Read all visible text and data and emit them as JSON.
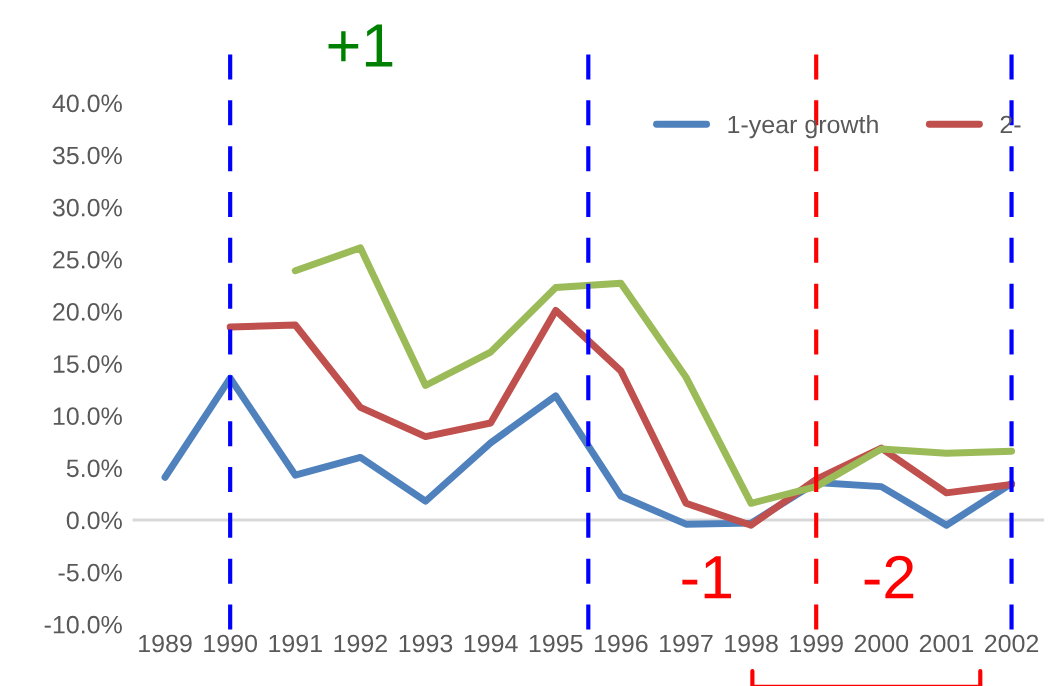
{
  "chart_data": {
    "type": "line",
    "x": [
      1989,
      1990,
      1991,
      1992,
      1993,
      1994,
      1995,
      1996,
      1997,
      1998,
      1999,
      2000,
      2001,
      2002
    ],
    "xlim": [
      1988.5,
      2002.5
    ],
    "xticks": [
      1989,
      1990,
      1991,
      1992,
      1993,
      1994,
      1995,
      1996,
      1997,
      1998,
      1999,
      2000,
      2001,
      2002
    ],
    "ylim": [
      -10,
      40
    ],
    "yticks": [
      {
        "value": -10,
        "label": "-10.0%"
      },
      {
        "value": -5,
        "label": "-5.0%"
      },
      {
        "value": 0,
        "label": "0.0%"
      },
      {
        "value": 5,
        "label": "5.0%"
      },
      {
        "value": 10,
        "label": "10.0%"
      },
      {
        "value": 15,
        "label": "15.0%"
      },
      {
        "value": 20,
        "label": "20.0%"
      },
      {
        "value": 25,
        "label": "25.0%"
      },
      {
        "value": 30,
        "label": "30.0%"
      },
      {
        "value": 35,
        "label": "35.0%"
      },
      {
        "value": 40,
        "label": "40.0%"
      }
    ],
    "series": [
      {
        "name": "1-year growth",
        "color": "#4f81bd",
        "values": [
          4.1,
          13.6,
          4.3,
          6.0,
          1.8,
          7.4,
          11.9,
          2.3,
          -0.4,
          -0.3,
          3.6,
          3.2,
          -0.5,
          3.5
        ]
      },
      {
        "name": "2-",
        "color": "#c0504d",
        "values": [
          null,
          18.5,
          18.7,
          10.8,
          8.0,
          9.3,
          20.1,
          14.3,
          1.6,
          -0.5,
          3.9,
          6.9,
          2.6,
          3.4
        ]
      },
      {
        "color": "#9bbb59",
        "values": [
          null,
          null,
          23.9,
          26.1,
          12.9,
          16.1,
          22.3,
          22.7,
          13.7,
          1.6,
          3.2,
          6.8,
          6.4,
          6.6
        ]
      }
    ],
    "ref_lines": [
      {
        "axis": "x",
        "value": 1990,
        "color": "#0000ff",
        "line_style": "dashed"
      },
      {
        "axis": "x",
        "value": 1995.5,
        "color": "#0000ff",
        "line_style": "dashed"
      },
      {
        "axis": "x",
        "value": 2002,
        "color": "#0000ff",
        "line_style": "dashed"
      },
      {
        "axis": "x",
        "value": 1999,
        "color": "#ff0000",
        "line_style": "dashed"
      }
    ],
    "annotations": [
      "+1",
      "-1",
      "-2"
    ],
    "legend": "top right",
    "grid": false
  }
}
